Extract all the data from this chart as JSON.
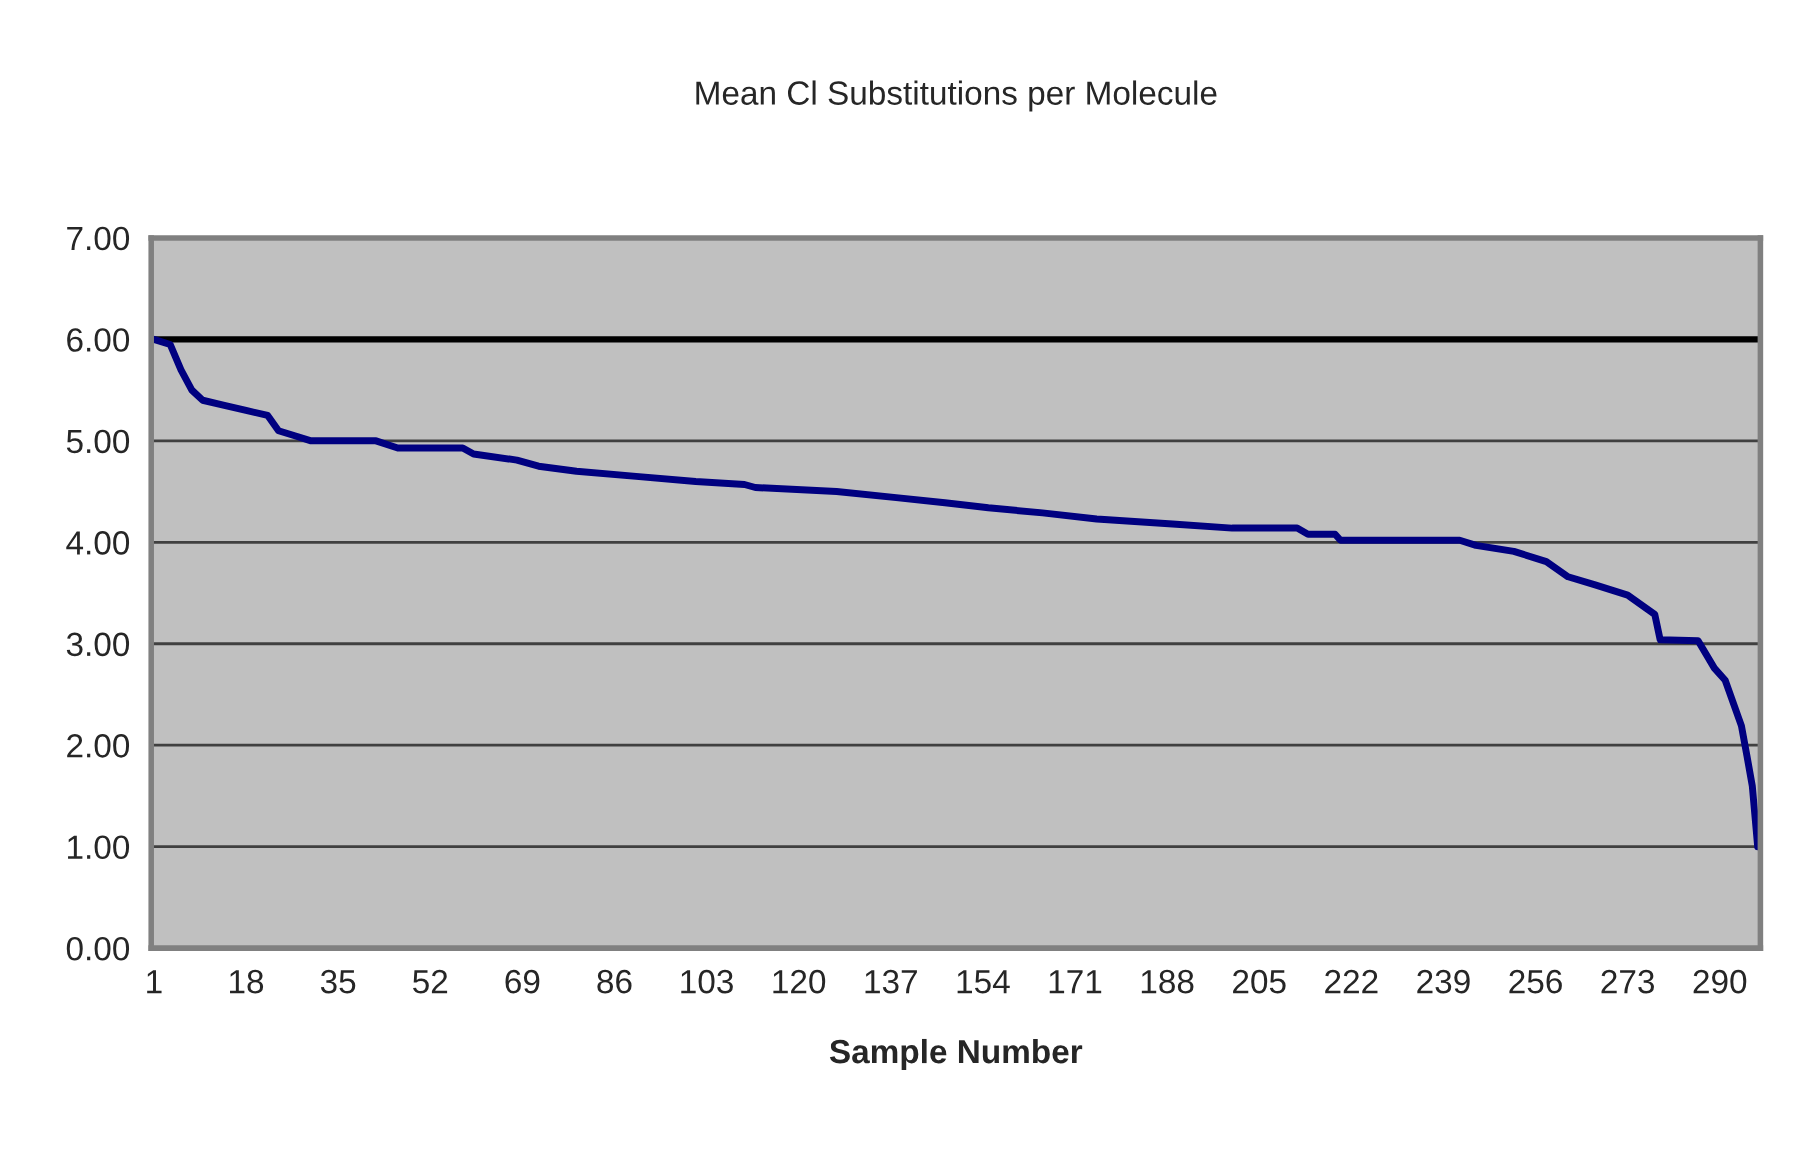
{
  "chart_data": {
    "type": "line",
    "title": "Mean Cl Substitutions per Molecule",
    "xlabel": "Sample Number",
    "series": [
      {
        "color": "#000080",
        "x": [
          1,
          4,
          6,
          8,
          10,
          14,
          18,
          22,
          24,
          27,
          30,
          42,
          46,
          58,
          60,
          68,
          72,
          79,
          90,
          101,
          110,
          112,
          127,
          138,
          147,
          155,
          165,
          175,
          189,
          200,
          212,
          214,
          219,
          220,
          242,
          245,
          252,
          258,
          262,
          267,
          273,
          278,
          279,
          286,
          289,
          291,
          294,
          295,
          296,
          297
        ],
        "values": [
          6.0,
          5.95,
          5.7,
          5.5,
          5.4,
          5.35,
          5.3,
          5.25,
          5.1,
          5.05,
          5.0,
          5.0,
          4.93,
          4.93,
          4.87,
          4.81,
          4.75,
          4.7,
          4.65,
          4.6,
          4.57,
          4.54,
          4.5,
          4.44,
          4.39,
          4.34,
          4.29,
          4.23,
          4.18,
          4.14,
          4.14,
          4.08,
          4.08,
          4.02,
          4.02,
          3.97,
          3.91,
          3.81,
          3.66,
          3.58,
          3.48,
          3.29,
          3.04,
          3.03,
          2.76,
          2.64,
          2.19,
          1.9,
          1.6,
          1.0
        ]
      }
    ],
    "xlim": [
      0.5,
      297.5
    ],
    "xticks": [
      1,
      18,
      35,
      52,
      69,
      86,
      103,
      120,
      137,
      154,
      171,
      188,
      205,
      222,
      239,
      256,
      273,
      290
    ],
    "ylim": [
      0,
      7
    ],
    "yticks": [
      {
        "value": 0,
        "label": "0.00"
      },
      {
        "value": 1,
        "label": "1.00"
      },
      {
        "value": 2,
        "label": "2.00"
      },
      {
        "value": 3,
        "label": "3.00"
      },
      {
        "value": 4,
        "label": "4.00"
      },
      {
        "value": 5,
        "label": "5.00"
      },
      {
        "value": 6,
        "label": "6.00"
      },
      {
        "value": 7,
        "label": "7.00"
      }
    ],
    "ref_lines": [
      {
        "axis": "y",
        "value": 6,
        "color": "#000000"
      }
    ],
    "grid": "y",
    "marker": "none",
    "line_style": "solid"
  }
}
